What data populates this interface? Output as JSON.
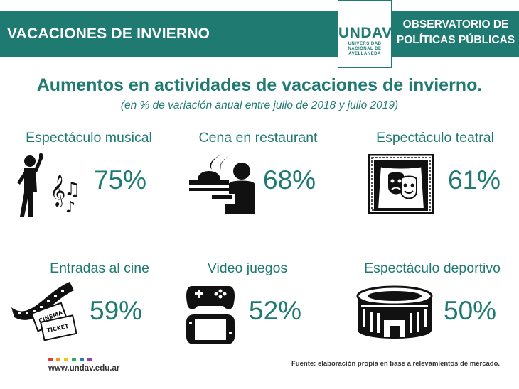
{
  "header": {
    "title": "VACACIONES DE INVIERNO",
    "logo_word": "UNDAV",
    "logo_sub_1": "UNIVERSIDAD",
    "logo_sub_2": "NACIONAL DE",
    "logo_sub_3": "AVELLANEDA",
    "org_line_1": "OBSERVATORIO DE",
    "org_line_2": "POLÍTICAS PÚBLICAS"
  },
  "main": {
    "title": "Aumentos en actividades de vacaciones de invierno.",
    "subtitle": "(en % de variación anual entre julio de 2018 y julio 2019)"
  },
  "items": [
    {
      "label": "Espectáculo musical",
      "value": "75%",
      "icon": "music-singer-icon"
    },
    {
      "label": "Cena en restaurant",
      "value": "68%",
      "icon": "restaurant-dish-icon"
    },
    {
      "label": "Espectáculo teatral",
      "value": "61%",
      "icon": "theater-masks-icon"
    },
    {
      "label": "Entradas al cine",
      "value": "59%",
      "icon": "cinema-ticket-icon"
    },
    {
      "label": "Video juegos",
      "value": "52%",
      "icon": "gamepad-icon"
    },
    {
      "label": "Espectáculo deportivo",
      "value": "50%",
      "icon": "stadium-icon"
    }
  ],
  "footer": {
    "website": "www.undav.edu.ar",
    "source": "Fuente: elaboración propia en base a relevamientos de mercado.",
    "dot_colors": [
      "#e53935",
      "#f39c12",
      "#f1c40f",
      "#27ae60",
      "#2980b9",
      "#8e44ad"
    ]
  },
  "colors": {
    "accent": "#1f7a72",
    "text": "#111111"
  }
}
